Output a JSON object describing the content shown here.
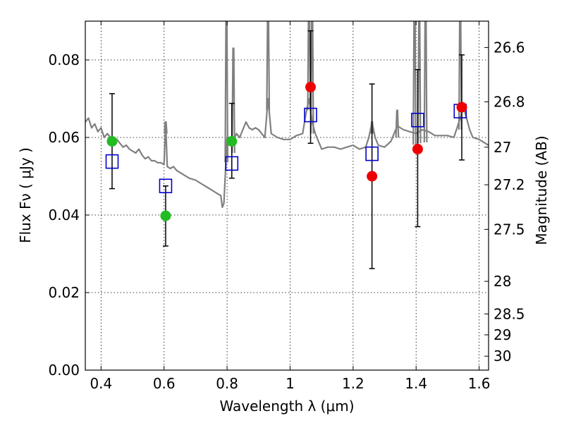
{
  "chart_data": {
    "type": "scatter",
    "xlabel": "Wavelength  λ (μm)",
    "ylabel": "Flux  Fν  ( μJy )",
    "y2label": "Magnitude (AB)",
    "xlim": [
      0.35,
      1.63
    ],
    "ylim": [
      0.0,
      0.09
    ],
    "grid": true,
    "x_ticks": [
      0.4,
      0.6,
      0.8,
      1.0,
      1.2,
      1.4,
      1.6
    ],
    "x_tick_labels": [
      "0.4",
      "0.6",
      "0.8",
      "1",
      "1.2",
      "1.4",
      "1.6"
    ],
    "y_ticks": [
      0.0,
      0.02,
      0.04,
      0.06,
      0.08
    ],
    "y_tick_labels": [
      "0.00",
      "0.02",
      "0.04",
      "0.06",
      "0.08"
    ],
    "y2_ticks": [
      {
        "label": "26.6",
        "flux": 0.0832
      },
      {
        "label": "26.8",
        "flux": 0.0692
      },
      {
        "label": "27",
        "flux": 0.0575
      },
      {
        "label": "27.2",
        "flux": 0.0478
      },
      {
        "label": "27.5",
        "flux": 0.0363
      },
      {
        "label": "28",
        "flux": 0.0229
      },
      {
        "label": "28.5",
        "flux": 0.0145
      },
      {
        "label": "29",
        "flux": 0.0091
      },
      {
        "label": "30",
        "flux": 0.0036
      }
    ],
    "colors": {
      "model": "#808080",
      "model_photometry": "#0000cc",
      "detection": "#22bb22",
      "upper": "#ee0000",
      "errorbar": "#000000"
    },
    "model_spectrum": {
      "x": [
        0.35,
        0.36,
        0.37,
        0.38,
        0.39,
        0.4,
        0.41,
        0.42,
        0.43,
        0.44,
        0.45,
        0.46,
        0.47,
        0.48,
        0.49,
        0.5,
        0.51,
        0.52,
        0.53,
        0.54,
        0.55,
        0.56,
        0.57,
        0.58,
        0.59,
        0.6,
        0.605,
        0.61,
        0.62,
        0.63,
        0.64,
        0.66,
        0.68,
        0.7,
        0.72,
        0.74,
        0.76,
        0.77,
        0.78,
        0.785,
        0.79,
        0.8,
        0.81,
        0.82,
        0.83,
        0.84,
        0.85,
        0.86,
        0.87,
        0.88,
        0.89,
        0.9,
        0.92,
        0.93,
        0.94,
        0.96,
        0.98,
        1.0,
        1.02,
        1.04,
        1.05,
        1.06,
        1.07,
        1.08,
        1.1,
        1.12,
        1.14,
        1.16,
        1.18,
        1.2,
        1.22,
        1.24,
        1.25,
        1.26,
        1.27,
        1.28,
        1.3,
        1.32,
        1.34,
        1.36,
        1.38,
        1.4,
        1.42,
        1.44,
        1.46,
        1.48,
        1.5,
        1.52,
        1.53,
        1.54,
        1.55,
        1.56,
        1.57,
        1.58,
        1.6,
        1.62,
        1.63
      ],
      "y": [
        0.064,
        0.065,
        0.0625,
        0.0635,
        0.0615,
        0.0625,
        0.06,
        0.061,
        0.06,
        0.059,
        0.0595,
        0.0585,
        0.0575,
        0.058,
        0.057,
        0.0565,
        0.056,
        0.057,
        0.0555,
        0.0545,
        0.055,
        0.054,
        0.054,
        0.0535,
        0.0535,
        0.053,
        0.064,
        0.0525,
        0.052,
        0.0525,
        0.0515,
        0.0505,
        0.0495,
        0.049,
        0.048,
        0.047,
        0.046,
        0.0455,
        0.045,
        0.042,
        0.043,
        0.06,
        0.06,
        0.059,
        0.061,
        0.06,
        0.062,
        0.064,
        0.0625,
        0.062,
        0.0625,
        0.062,
        0.06,
        0.07,
        0.061,
        0.06,
        0.0595,
        0.0595,
        0.0605,
        0.061,
        0.066,
        0.07,
        0.064,
        0.061,
        0.057,
        0.0575,
        0.0575,
        0.057,
        0.0575,
        0.058,
        0.057,
        0.0575,
        0.06,
        0.064,
        0.06,
        0.058,
        0.0575,
        0.059,
        0.063,
        0.062,
        0.0615,
        0.061,
        0.062,
        0.0615,
        0.0605,
        0.0605,
        0.0605,
        0.06,
        0.0625,
        0.065,
        0.068,
        0.065,
        0.062,
        0.06,
        0.0595,
        0.0585,
        0.058
      ]
    },
    "emission_lines": [
      {
        "x": 0.605,
        "y": 0.064
      },
      {
        "x": 0.798,
        "y": 0.095
      },
      {
        "x": 0.82,
        "y": 0.083
      },
      {
        "x": 0.93,
        "y": 0.095
      },
      {
        "x": 1.06,
        "y": 0.095
      },
      {
        "x": 1.07,
        "y": 0.095
      },
      {
        "x": 1.26,
        "y": 0.064
      },
      {
        "x": 1.34,
        "y": 0.067
      },
      {
        "x": 1.395,
        "y": 0.095
      },
      {
        "x": 1.41,
        "y": 0.095
      },
      {
        "x": 1.43,
        "y": 0.095
      },
      {
        "x": 1.54,
        "y": 0.095
      }
    ],
    "model_photometry": {
      "x": [
        0.435,
        0.605,
        0.815,
        1.065,
        1.26,
        1.405,
        1.54
      ],
      "y": [
        0.0538,
        0.0475,
        0.0533,
        0.0658,
        0.0558,
        0.0645,
        0.0668
      ]
    },
    "observed": {
      "x": [
        0.435,
        0.605,
        0.815,
        1.065,
        1.26,
        1.405,
        1.545
      ],
      "y": [
        0.059,
        0.0398,
        0.059,
        0.073,
        0.05,
        0.057,
        0.0678
      ],
      "err_low": [
        0.0468,
        0.032,
        0.0495,
        0.0585,
        0.0262,
        0.037,
        0.0542
      ],
      "err_high": [
        0.0713,
        0.0475,
        0.0688,
        0.0875,
        0.0738,
        0.0775,
        0.0813
      ],
      "category": [
        "detection",
        "detection",
        "detection",
        "upper",
        "upper",
        "upper",
        "upper"
      ]
    }
  }
}
